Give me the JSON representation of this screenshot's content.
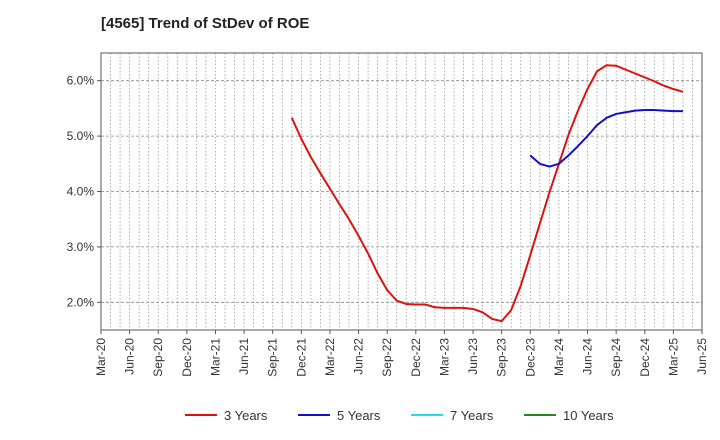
{
  "chart_data": {
    "type": "line",
    "title": "[4565]  Trend of StDev of ROE",
    "xlabel": "",
    "ylabel": "",
    "x_ticks": [
      "Mar-20",
      "Jun-20",
      "Sep-20",
      "Dec-20",
      "Mar-21",
      "Jun-21",
      "Sep-21",
      "Dec-21",
      "Mar-22",
      "Jun-22",
      "Sep-22",
      "Dec-22",
      "Mar-23",
      "Jun-23",
      "Sep-23",
      "Dec-23",
      "Mar-24",
      "Jun-24",
      "Sep-24",
      "Dec-24",
      "Mar-25",
      "Jun-25"
    ],
    "y_ticks": [
      "2.0%",
      "3.0%",
      "4.0%",
      "5.0%",
      "6.0%"
    ],
    "y_tick_values": [
      2.0,
      3.0,
      4.0,
      5.0,
      6.0
    ],
    "ylim": [
      1.5,
      6.5
    ],
    "x_range_months": [
      0,
      63
    ],
    "grid": true,
    "legend_position": "bottom",
    "series": [
      {
        "name": "3 Years",
        "color": "#dd1111",
        "points": [
          [
            "Nov-21",
            5.33
          ],
          [
            "Dec-21",
            4.95
          ],
          [
            "Jan-22",
            4.62
          ],
          [
            "Feb-22",
            4.33
          ],
          [
            "Mar-22",
            4.05
          ],
          [
            "Apr-22",
            3.77
          ],
          [
            "May-22",
            3.5
          ],
          [
            "Jun-22",
            3.2
          ],
          [
            "Jul-22",
            2.88
          ],
          [
            "Aug-22",
            2.52
          ],
          [
            "Sep-22",
            2.22
          ],
          [
            "Oct-22",
            2.03
          ],
          [
            "Nov-22",
            1.97
          ],
          [
            "Dec-22",
            1.96
          ],
          [
            "Jan-23",
            1.96
          ],
          [
            "Feb-23",
            1.91
          ],
          [
            "Mar-23",
            1.9
          ],
          [
            "Apr-23",
            1.9
          ],
          [
            "May-23",
            1.9
          ],
          [
            "Jun-23",
            1.88
          ],
          [
            "Jul-23",
            1.82
          ],
          [
            "Aug-23",
            1.7
          ],
          [
            "Sep-23",
            1.66
          ],
          [
            "Oct-23",
            1.86
          ],
          [
            "Nov-23",
            2.3
          ],
          [
            "Dec-23",
            2.85
          ],
          [
            "Jan-24",
            3.42
          ],
          [
            "Feb-24",
            3.98
          ],
          [
            "Mar-24",
            4.5
          ],
          [
            "Apr-24",
            5.02
          ],
          [
            "May-24",
            5.46
          ],
          [
            "Jun-24",
            5.85
          ],
          [
            "Jul-24",
            6.17
          ],
          [
            "Aug-24",
            6.28
          ],
          [
            "Sep-24",
            6.27
          ],
          [
            "Oct-24",
            6.2
          ],
          [
            "Nov-24",
            6.13
          ],
          [
            "Dec-24",
            6.06
          ],
          [
            "Jan-25",
            5.99
          ],
          [
            "Feb-25",
            5.91
          ],
          [
            "Mar-25",
            5.85
          ],
          [
            "Apr-25",
            5.8
          ]
        ]
      },
      {
        "name": "5 Years",
        "color": "#1111cc",
        "points": [
          [
            "Dec-23",
            4.65
          ],
          [
            "Jan-24",
            4.5
          ],
          [
            "Feb-24",
            4.45
          ],
          [
            "Mar-24",
            4.5
          ],
          [
            "Apr-24",
            4.65
          ],
          [
            "May-24",
            4.82
          ],
          [
            "Jun-24",
            5.0
          ],
          [
            "Jul-24",
            5.2
          ],
          [
            "Aug-24",
            5.33
          ],
          [
            "Sep-24",
            5.4
          ],
          [
            "Oct-24",
            5.43
          ],
          [
            "Nov-24",
            5.46
          ],
          [
            "Dec-24",
            5.47
          ],
          [
            "Jan-25",
            5.47
          ],
          [
            "Feb-25",
            5.46
          ],
          [
            "Mar-25",
            5.45
          ],
          [
            "Apr-25",
            5.45
          ]
        ]
      },
      {
        "name": "7 Years",
        "color": "#22ddee",
        "points": []
      },
      {
        "name": "10 Years",
        "color": "#228822",
        "points": []
      }
    ]
  }
}
